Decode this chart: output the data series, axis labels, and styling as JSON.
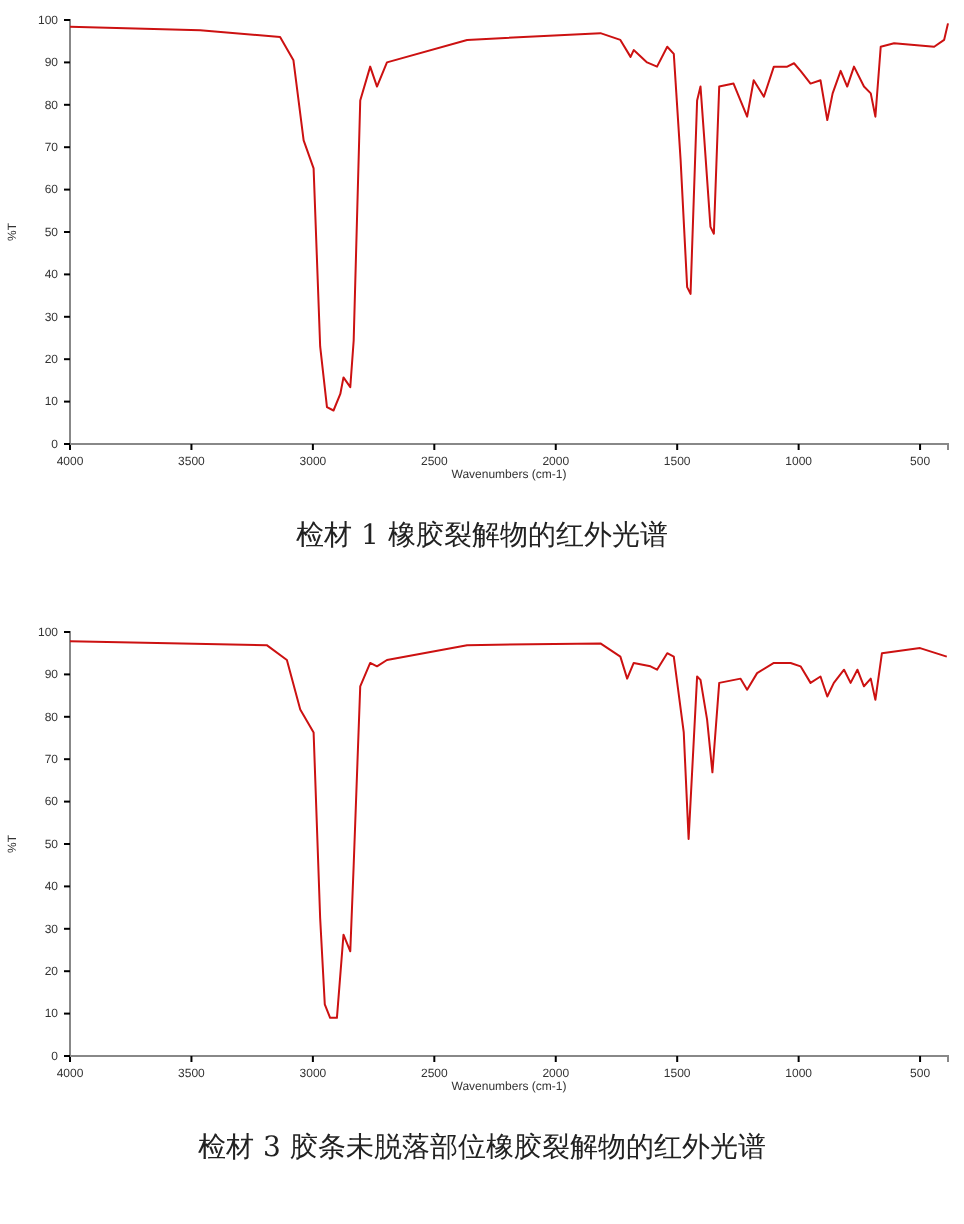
{
  "chart_data": [
    {
      "type": "line",
      "xlabel": "Wavenumbers (cm-1)",
      "ylabel": "%T",
      "xlim": [
        4000,
        385
      ],
      "ylim": [
        0,
        100
      ],
      "xticks": [
        4000,
        3500,
        3000,
        2500,
        2000,
        1500,
        1000,
        500
      ],
      "yticks": [
        0,
        10,
        20,
        30,
        40,
        50,
        60,
        70,
        80,
        90,
        100
      ],
      "annotations": [
        "检材 1 橡胶裂解物的红外光谱"
      ],
      "series": [
        {
          "color": "#cc1111",
          "x": [
            4000,
            3464,
            3135,
            3080,
            3038,
            2997,
            2970,
            2942,
            2915,
            2887,
            2874,
            2846,
            2832,
            2805,
            2764,
            2736,
            2695,
            2365,
            1816,
            1734,
            1692,
            1679,
            1624,
            1583,
            1541,
            1514,
            1486,
            1459,
            1445,
            1418,
            1404,
            1390,
            1363,
            1349,
            1327,
            1268,
            1212,
            1185,
            1143,
            1102,
            1047,
            1019,
            992,
            951,
            910,
            882,
            860,
            827,
            800,
            772,
            731,
            703,
            684,
            662,
            607,
            442,
            401,
            385
          ],
          "values": [
            98.4,
            97.6,
            96,
            90.5,
            71.6,
            65,
            23,
            8.7,
            7.9,
            11.8,
            15.7,
            13.4,
            24.4,
            81,
            89,
            84.3,
            90,
            95.3,
            96.9,
            95.3,
            91.3,
            92.9,
            90,
            89,
            93.7,
            92,
            67,
            37,
            35.4,
            81,
            84.3,
            73.2,
            51.2,
            49.6,
            84.3,
            85,
            77.2,
            85.8,
            81.9,
            89,
            89,
            89.8,
            88,
            85,
            85.8,
            76.4,
            82.7,
            88,
            84.3,
            89,
            84.3,
            82.7,
            77.2,
            93.7,
            94.5,
            93.7,
            95.3,
            99.2
          ]
        }
      ]
    },
    {
      "type": "line",
      "xlabel": "Wavenumbers (cm-1)",
      "ylabel": "%T",
      "xlim": [
        4000,
        385
      ],
      "ylim": [
        0,
        100
      ],
      "xticks": [
        4000,
        3500,
        3000,
        2500,
        2000,
        1500,
        1000,
        500
      ],
      "yticks": [
        0,
        10,
        20,
        30,
        40,
        50,
        60,
        70,
        80,
        90,
        100
      ],
      "annotations": [
        "检材 3 胶条未脱落部位橡胶裂解物的红外光谱"
      ],
      "series": [
        {
          "color": "#cc1111",
          "x": [
            4000,
            3190,
            3107,
            3052,
            2997,
            2970,
            2951,
            2929,
            2901,
            2874,
            2846,
            2832,
            2805,
            2764,
            2736,
            2695,
            2365,
            1816,
            1734,
            1706,
            1679,
            1610,
            1583,
            1541,
            1514,
            1473,
            1453,
            1418,
            1404,
            1377,
            1355,
            1327,
            1239,
            1212,
            1171,
            1102,
            1033,
            992,
            951,
            910,
            882,
            855,
            813,
            786,
            758,
            731,
            703,
            684,
            657,
            500,
            390
          ],
          "values": [
            97.8,
            96.9,
            93.4,
            81.7,
            76.3,
            32.5,
            12.2,
            9,
            9,
            28.6,
            24.7,
            45,
            87.2,
            92.7,
            91.9,
            93.4,
            96.9,
            97.3,
            94.2,
            89,
            92.7,
            91.9,
            91.1,
            95,
            94.2,
            76.3,
            51.2,
            89.5,
            88.7,
            79.4,
            66.9,
            88,
            89,
            86.4,
            90.3,
            92.7,
            92.7,
            91.9,
            88,
            89.5,
            84.8,
            88,
            91.1,
            88,
            91.1,
            87.2,
            89,
            84,
            95,
            96.2,
            94.2
          ]
        }
      ]
    }
  ]
}
